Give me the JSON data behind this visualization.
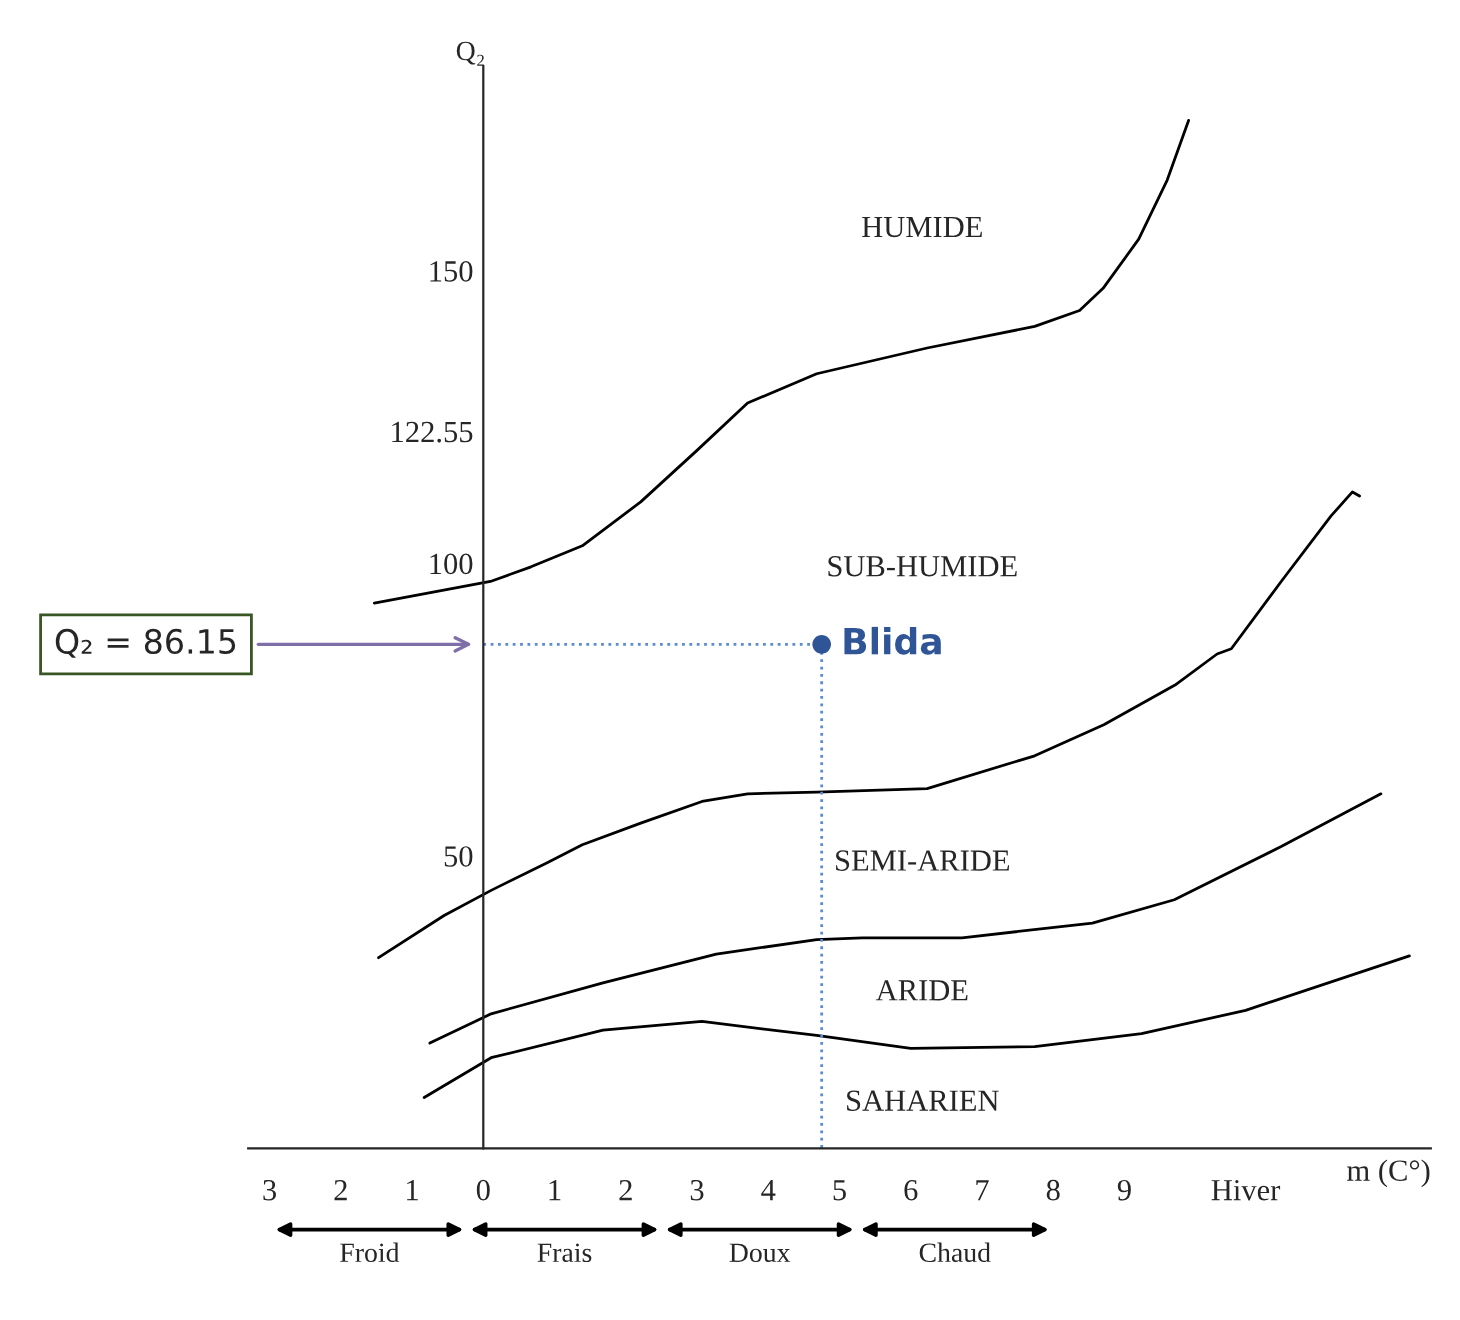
{
  "chart_data": {
    "type": "line",
    "xlabel": "m (C°)",
    "ylabel": "Q₂",
    "xlim": [
      -3.3,
      13.3
    ],
    "ylim": [
      0,
      185
    ],
    "xticks": [
      {
        "value": -3,
        "label": "3"
      },
      {
        "value": -2,
        "label": "2"
      },
      {
        "value": -1,
        "label": "1"
      },
      0,
      1,
      2,
      3,
      4,
      5,
      6,
      7,
      8,
      9,
      {
        "value": 10.7,
        "label": "Hiver"
      }
    ],
    "yticks": [
      50,
      100,
      122.55,
      150
    ],
    "grid": false,
    "legend": false,
    "marker": "none",
    "line_style": "solid",
    "series": [
      {
        "color": "#000000",
        "x": [
          -1.53,
          0.1,
          0.67,
          1.39,
          2.21,
          3.0,
          3.71,
          4.68,
          6.23,
          7.74,
          8.37,
          8.7,
          9.2,
          9.6,
          9.9
        ],
        "values": [
          93.2,
          96.9,
          99.4,
          103.0,
          110.5,
          119.3,
          127.4,
          132.4,
          136.8,
          140.5,
          143.2,
          147.0,
          155.4,
          165.5,
          175.7
        ]
      },
      {
        "color": "#000000",
        "x": [
          -1.47,
          -0.55,
          0.11,
          0.89,
          1.39,
          2.21,
          3.07,
          3.71,
          4.68,
          6.23,
          7.74,
          8.71,
          9.71,
          10.3,
          10.5,
          11.2,
          11.9,
          12.2,
          12.3
        ],
        "values": [
          32.6,
          39.8,
          44.1,
          48.8,
          51.9,
          55.6,
          59.3,
          60.6,
          60.9,
          61.5,
          67.1,
          72.4,
          79.2,
          84.5,
          85.4,
          96.9,
          108.1,
          112.2,
          111.5
        ]
      },
      {
        "color": "#000000",
        "x": [
          -0.75,
          0.11,
          1.68,
          3.27,
          4.68,
          5.32,
          6.72,
          8.55,
          9.7,
          11.2,
          12.6
        ],
        "values": [
          18.0,
          23.0,
          28.3,
          33.2,
          35.7,
          36.0,
          36.0,
          38.5,
          42.5,
          51.6,
          60.6
        ]
      },
      {
        "color": "#000000",
        "x": [
          -0.83,
          0.11,
          1.68,
          3.07,
          4.68,
          6.0,
          7.74,
          9.24,
          10.7,
          13.0
        ],
        "values": [
          8.7,
          15.5,
          20.2,
          21.7,
          19.3,
          17.1,
          17.4,
          19.6,
          23.6,
          32.9
        ]
      },
      {
        "color": "#5b8bd0",
        "line_style": "dotted",
        "x": [
          0,
          4.75,
          4.75
        ],
        "values": [
          86.15,
          86.15,
          0
        ]
      },
      {
        "type": "scatter",
        "name": "Blida",
        "color": "#2f5597",
        "marker": "circle",
        "x": [
          4.75
        ],
        "values": [
          86.15
        ]
      }
    ],
    "annotations": [
      "HUMIDE",
      "SUB-HUMIDE",
      "SEMI-ARIDE",
      "ARIDE",
      "SAHARIEN",
      "Froid",
      "Frais",
      "Doux",
      "Chaud",
      {
        "text": "Q₂ = 86.15",
        "x": 0,
        "y": 86.15
      }
    ]
  }
}
